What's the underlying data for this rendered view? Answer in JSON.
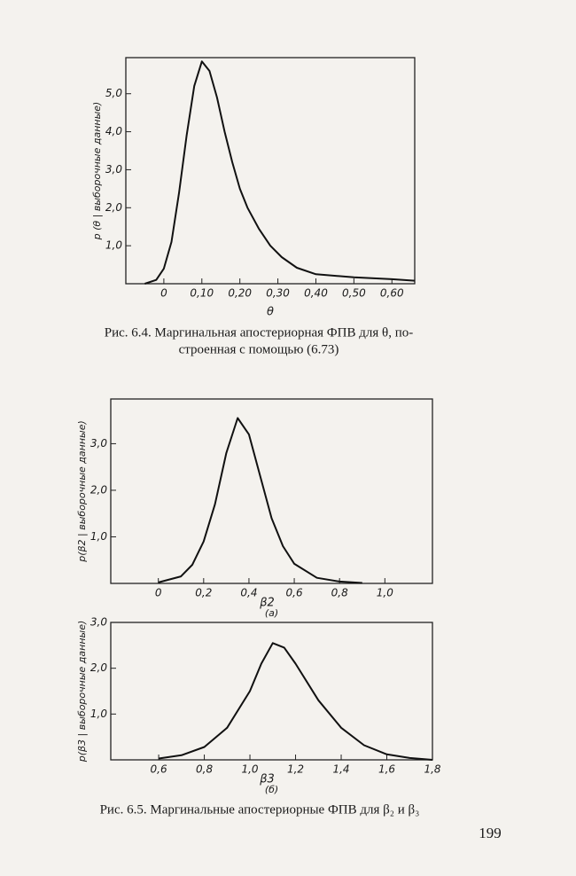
{
  "chart_data": [
    {
      "type": "line",
      "x_label": "θ",
      "y_label": "p (θ | выборочные данные)",
      "x": [
        -0.05,
        -0.02,
        0,
        0.02,
        0.04,
        0.06,
        0.08,
        0.1,
        0.12,
        0.14,
        0.16,
        0.18,
        0.2,
        0.22,
        0.25,
        0.28,
        0.31,
        0.35,
        0.4,
        0.5,
        0.6,
        0.66
      ],
      "values": [
        0,
        0.1,
        0.4,
        1.1,
        2.4,
        3.9,
        5.2,
        5.85,
        5.6,
        4.9,
        4.0,
        3.2,
        2.5,
        2.0,
        1.45,
        1.0,
        0.7,
        0.42,
        0.25,
        0.17,
        0.12,
        0.08
      ],
      "color": "#111111",
      "xlim": [
        -0.1,
        0.66
      ],
      "ylim": [
        0,
        5.95
      ],
      "xticks": [
        0,
        {
          "value": 0.1,
          "label": "0,10"
        },
        {
          "value": 0.2,
          "label": "0,20"
        },
        {
          "value": 0.3,
          "label": "0,30"
        },
        {
          "value": 0.4,
          "label": "0,40"
        },
        {
          "value": 0.5,
          "label": "0,50"
        },
        {
          "value": 0.6,
          "label": "0,60"
        }
      ],
      "yticks": [
        {
          "value": 1,
          "label": "1,0"
        },
        {
          "value": 2,
          "label": "2,0"
        },
        {
          "value": 3,
          "label": "3,0"
        },
        {
          "value": 4,
          "label": "4,0"
        },
        {
          "value": 5,
          "label": "5,0"
        }
      ]
    },
    {
      "type": "line",
      "x_label": "β2",
      "y_label": "p(β2 | выборочные данные)",
      "subtitle": "(а)",
      "x": [
        0,
        0.1,
        0.15,
        0.2,
        0.25,
        0.3,
        0.35,
        0.4,
        0.45,
        0.5,
        0.55,
        0.6,
        0.7,
        0.8,
        0.9
      ],
      "values": [
        0.02,
        0.15,
        0.4,
        0.9,
        1.7,
        2.8,
        3.55,
        3.2,
        2.3,
        1.4,
        0.8,
        0.42,
        0.12,
        0.04,
        0.01
      ],
      "color": "#111111",
      "xlim": [
        -0.21,
        1.21
      ],
      "ylim": [
        0,
        3.96
      ],
      "xticks": [
        0,
        {
          "value": 0.2,
          "label": "0,2"
        },
        {
          "value": 0.4,
          "label": "0,4"
        },
        {
          "value": 0.6,
          "label": "0,6"
        },
        {
          "value": 0.8,
          "label": "0,8"
        },
        {
          "value": 1,
          "label": "1,0"
        }
      ],
      "yticks": [
        {
          "value": 1,
          "label": "1,0"
        },
        {
          "value": 2,
          "label": "2,0"
        },
        {
          "value": 3,
          "label": "3,0"
        }
      ]
    },
    {
      "type": "line",
      "x_label": "β3",
      "y_label": "p(β3 | выборочные данные)",
      "subtitle": "(б)",
      "x": [
        0.6,
        0.7,
        0.8,
        0.9,
        1.0,
        1.05,
        1.1,
        1.15,
        1.2,
        1.3,
        1.4,
        1.5,
        1.6,
        1.7,
        1.8
      ],
      "values": [
        0.03,
        0.1,
        0.28,
        0.7,
        1.5,
        2.1,
        2.55,
        2.45,
        2.1,
        1.3,
        0.7,
        0.32,
        0.12,
        0.04,
        0
      ],
      "color": "#111111",
      "xlim": [
        0.39,
        1.8
      ],
      "ylim": [
        0,
        3.0
      ],
      "xticks": [
        {
          "value": 0.6,
          "label": "0,6"
        },
        {
          "value": 0.8,
          "label": "0,8"
        },
        {
          "value": 1,
          "label": "1,0"
        },
        {
          "value": 1.2,
          "label": "1,2"
        },
        {
          "value": 1.4,
          "label": "1,4"
        },
        {
          "value": 1.6,
          "label": "1,6"
        },
        {
          "value": 1.8,
          "label": "1,8"
        }
      ],
      "yticks": [
        {
          "value": 1,
          "label": "1,0"
        },
        {
          "value": 2,
          "label": "2,0"
        },
        {
          "value": 3,
          "label": "3,0"
        }
      ]
    }
  ],
  "captions": [
    "Рис. 6.4. Маргинальная апостериорная ФПВ для θ, по-",
    "строенная с помощью (6.73)",
    "Рис. 6.5. Маргинальные апостериорные ФПВ для β₂ и β₃"
  ],
  "page_number": "199"
}
